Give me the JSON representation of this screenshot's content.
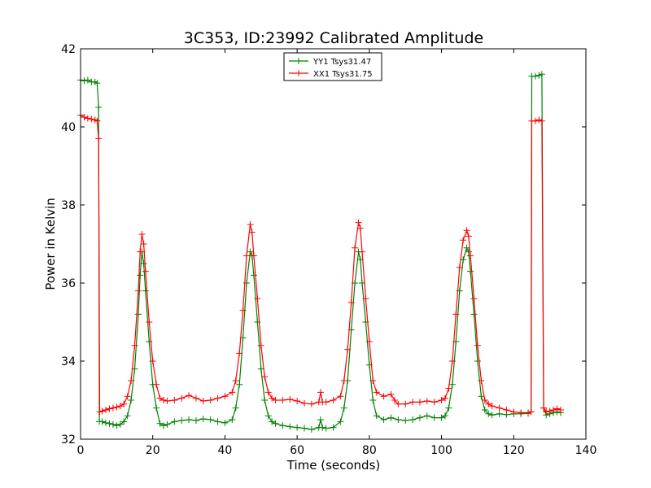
{
  "chart_data": {
    "type": "line",
    "title": "3C353, ID:23992 Calibrated Amplitude",
    "xlabel": "Time (seconds)",
    "ylabel": "Power in Kelvin",
    "xlim": [
      0,
      140
    ],
    "ylim": [
      32,
      42
    ],
    "xticks": [
      0,
      20,
      40,
      60,
      80,
      100,
      120,
      140
    ],
    "yticks": [
      32,
      34,
      36,
      38,
      40,
      42
    ],
    "grid": false,
    "legend_position": "top-center",
    "series": [
      {
        "name": "YY1 Tsys31.47",
        "color": "#008000",
        "marker": "+",
        "points": [
          [
            0,
            41.2
          ],
          [
            1,
            41.18
          ],
          [
            2,
            41.2
          ],
          [
            3,
            41.15
          ],
          [
            4,
            41.15
          ],
          [
            4.6,
            41.12
          ],
          [
            5,
            40.5
          ],
          [
            5.2,
            32.45
          ],
          [
            6,
            32.45
          ],
          [
            7,
            32.42
          ],
          [
            8,
            32.4
          ],
          [
            9,
            32.38
          ],
          [
            10,
            32.35
          ],
          [
            11,
            32.38
          ],
          [
            12,
            32.45
          ],
          [
            13,
            32.6
          ],
          [
            14,
            33.0
          ],
          [
            15,
            33.8
          ],
          [
            16,
            35.2
          ],
          [
            16.5,
            36.2
          ],
          [
            17,
            36.8
          ],
          [
            17.5,
            36.5
          ],
          [
            18,
            35.8
          ],
          [
            19,
            34.5
          ],
          [
            20,
            33.4
          ],
          [
            21,
            32.8
          ],
          [
            22,
            32.4
          ],
          [
            23,
            32.35
          ],
          [
            24,
            32.38
          ],
          [
            26,
            32.45
          ],
          [
            28,
            32.48
          ],
          [
            30,
            32.5
          ],
          [
            32,
            32.48
          ],
          [
            34,
            32.52
          ],
          [
            36,
            32.5
          ],
          [
            38,
            32.45
          ],
          [
            40,
            32.42
          ],
          [
            42,
            32.5
          ],
          [
            43,
            32.8
          ],
          [
            44,
            33.4
          ],
          [
            45,
            34.6
          ],
          [
            46,
            36.0
          ],
          [
            47,
            36.8
          ],
          [
            47.5,
            36.7
          ],
          [
            48,
            36.2
          ],
          [
            49,
            35.0
          ],
          [
            50,
            33.8
          ],
          [
            51,
            33.0
          ],
          [
            52,
            32.6
          ],
          [
            53,
            32.45
          ],
          [
            54,
            32.4
          ],
          [
            56,
            32.35
          ],
          [
            58,
            32.32
          ],
          [
            60,
            32.3
          ],
          [
            62,
            32.28
          ],
          [
            64,
            32.25
          ],
          [
            66,
            32.3
          ],
          [
            66.5,
            32.5
          ],
          [
            67,
            32.3
          ],
          [
            68,
            32.28
          ],
          [
            70,
            32.3
          ],
          [
            72,
            32.45
          ],
          [
            73,
            32.8
          ],
          [
            74,
            33.5
          ],
          [
            75,
            34.8
          ],
          [
            76,
            36.0
          ],
          [
            77,
            36.8
          ],
          [
            77.5,
            36.6
          ],
          [
            78,
            36.0
          ],
          [
            79,
            35.0
          ],
          [
            80,
            33.9
          ],
          [
            81,
            33.0
          ],
          [
            82,
            32.6
          ],
          [
            84,
            32.5
          ],
          [
            86,
            32.55
          ],
          [
            88,
            32.5
          ],
          [
            90,
            32.48
          ],
          [
            92,
            32.5
          ],
          [
            94,
            32.55
          ],
          [
            96,
            32.6
          ],
          [
            98,
            32.55
          ],
          [
            100,
            32.55
          ],
          [
            101,
            32.6
          ],
          [
            102,
            32.8
          ],
          [
            103,
            33.4
          ],
          [
            104,
            34.5
          ],
          [
            105,
            35.8
          ],
          [
            106,
            36.6
          ],
          [
            107,
            36.9
          ],
          [
            107.5,
            36.8
          ],
          [
            108,
            36.3
          ],
          [
            109,
            35.2
          ],
          [
            110,
            34.0
          ],
          [
            111,
            33.1
          ],
          [
            112,
            32.75
          ],
          [
            113,
            32.65
          ],
          [
            114,
            32.62
          ],
          [
            116,
            32.65
          ],
          [
            118,
            32.63
          ],
          [
            120,
            32.65
          ],
          [
            122,
            32.65
          ],
          [
            124,
            32.66
          ],
          [
            124.8,
            32.7
          ],
          [
            125,
            41.3
          ],
          [
            126,
            41.3
          ],
          [
            127,
            41.32
          ],
          [
            127.8,
            41.35
          ],
          [
            128.3,
            32.8
          ],
          [
            129,
            32.62
          ],
          [
            130,
            32.65
          ],
          [
            131,
            32.68
          ],
          [
            132,
            32.7
          ],
          [
            133,
            32.68
          ]
        ]
      },
      {
        "name": "XX1 Tsys31.75",
        "color": "#ff0000",
        "marker": "+",
        "points": [
          [
            0,
            40.3
          ],
          [
            1,
            40.25
          ],
          [
            2,
            40.22
          ],
          [
            3,
            40.2
          ],
          [
            4,
            40.18
          ],
          [
            4.6,
            40.15
          ],
          [
            5,
            39.7
          ],
          [
            5.3,
            32.7
          ],
          [
            6,
            32.72
          ],
          [
            7,
            32.75
          ],
          [
            8,
            32.78
          ],
          [
            9,
            32.8
          ],
          [
            10,
            32.82
          ],
          [
            11,
            32.85
          ],
          [
            12,
            32.9
          ],
          [
            13,
            33.1
          ],
          [
            14,
            33.5
          ],
          [
            15,
            34.4
          ],
          [
            16,
            35.8
          ],
          [
            16.5,
            36.8
          ],
          [
            17,
            37.25
          ],
          [
            17.5,
            37.0
          ],
          [
            18,
            36.3
          ],
          [
            19,
            35.0
          ],
          [
            20,
            34.0
          ],
          [
            21,
            33.4
          ],
          [
            22,
            33.05
          ],
          [
            23,
            33.0
          ],
          [
            24,
            32.98
          ],
          [
            26,
            33.0
          ],
          [
            28,
            33.05
          ],
          [
            30,
            33.12
          ],
          [
            32,
            33.05
          ],
          [
            34,
            32.98
          ],
          [
            36,
            33.0
          ],
          [
            38,
            33.05
          ],
          [
            40,
            33.1
          ],
          [
            42,
            33.2
          ],
          [
            43,
            33.5
          ],
          [
            44,
            34.2
          ],
          [
            45,
            35.3
          ],
          [
            46,
            36.7
          ],
          [
            47,
            37.5
          ],
          [
            47.5,
            37.3
          ],
          [
            48,
            36.7
          ],
          [
            49,
            35.6
          ],
          [
            50,
            34.4
          ],
          [
            51,
            33.6
          ],
          [
            52,
            33.2
          ],
          [
            53,
            33.05
          ],
          [
            54,
            33.0
          ],
          [
            56,
            33.0
          ],
          [
            58,
            33.02
          ],
          [
            60,
            32.98
          ],
          [
            62,
            32.92
          ],
          [
            64,
            32.9
          ],
          [
            66,
            32.95
          ],
          [
            66.5,
            33.2
          ],
          [
            67,
            32.95
          ],
          [
            68,
            32.95
          ],
          [
            70,
            33.0
          ],
          [
            72,
            33.1
          ],
          [
            73,
            33.5
          ],
          [
            74,
            34.3
          ],
          [
            75,
            35.5
          ],
          [
            76,
            36.9
          ],
          [
            77,
            37.55
          ],
          [
            77.5,
            37.4
          ],
          [
            78,
            36.8
          ],
          [
            79,
            35.6
          ],
          [
            80,
            34.5
          ],
          [
            81,
            33.5
          ],
          [
            82,
            33.2
          ],
          [
            84,
            33.1
          ],
          [
            86,
            33.15
          ],
          [
            87,
            33.0
          ],
          [
            88,
            32.9
          ],
          [
            90,
            32.9
          ],
          [
            92,
            32.95
          ],
          [
            94,
            32.95
          ],
          [
            96,
            32.98
          ],
          [
            98,
            32.95
          ],
          [
            100,
            33.0
          ],
          [
            101,
            33.05
          ],
          [
            102,
            33.3
          ],
          [
            103,
            34.0
          ],
          [
            104,
            35.2
          ],
          [
            105,
            36.4
          ],
          [
            106,
            37.1
          ],
          [
            107,
            37.35
          ],
          [
            107.5,
            37.2
          ],
          [
            108,
            36.7
          ],
          [
            109,
            35.6
          ],
          [
            110,
            34.4
          ],
          [
            111,
            33.5
          ],
          [
            112,
            33.0
          ],
          [
            113,
            32.9
          ],
          [
            114,
            32.85
          ],
          [
            116,
            32.8
          ],
          [
            118,
            32.75
          ],
          [
            120,
            32.7
          ],
          [
            122,
            32.68
          ],
          [
            124,
            32.68
          ],
          [
            124.8,
            32.7
          ],
          [
            125,
            40.15
          ],
          [
            126,
            40.15
          ],
          [
            127,
            40.18
          ],
          [
            127.8,
            40.15
          ],
          [
            128.3,
            32.8
          ],
          [
            129,
            32.7
          ],
          [
            130,
            32.72
          ],
          [
            131,
            32.75
          ],
          [
            132,
            32.78
          ],
          [
            133,
            32.75
          ]
        ]
      }
    ]
  }
}
